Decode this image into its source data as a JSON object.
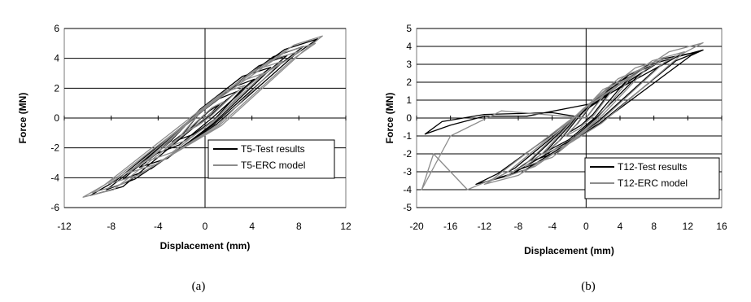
{
  "captions": [
    "(a)",
    "(b)"
  ],
  "chart_data": [
    {
      "type": "line",
      "panel": "(a)",
      "title": "",
      "xlabel": "Displacement (mm)",
      "ylabel": "Force (MN)",
      "xlim": [
        -12,
        12
      ],
      "ylim": [
        -6,
        6
      ],
      "xticks": [
        -12,
        -8,
        -4,
        0,
        4,
        8,
        12
      ],
      "yticks": [
        -6,
        -4,
        -2,
        0,
        2,
        4,
        6
      ],
      "grid": "horizontal",
      "legend_position": "bottom-right",
      "series": [
        {
          "name": "T5-Test results",
          "color": "#000000",
          "x": [
            0,
            0.6,
            1.2,
            0.4,
            -0.6,
            -1.2,
            -0.4,
            0.5,
            1.8,
            2.8,
            1.2,
            -0.5,
            -1.8,
            -2.8,
            -1.0,
            0.8,
            3.0,
            4.2,
            2.2,
            -0.6,
            -3.0,
            -4.2,
            -2.2,
            0.6,
            4.0,
            5.6,
            3.2,
            -0.4,
            -4.0,
            -5.6,
            -3.2,
            0.8,
            5.2,
            7.0,
            4.6,
            0.2,
            -5.2,
            -7.0,
            -4.6,
            0.8,
            6.4,
            8.4,
            5.8,
            0.6,
            -6.4,
            -8.4,
            -6.0,
            1.0,
            7.6,
            9.6,
            6.8,
            0.8,
            -7.6,
            -9.8,
            -7.0,
            0
          ],
          "y": [
            0,
            0.4,
            0.9,
            0.5,
            -0.2,
            -0.7,
            -0.3,
            0.2,
            1.2,
            1.8,
            1.3,
            0.3,
            -1.0,
            -1.6,
            -1.1,
            -0.1,
            1.8,
            2.6,
            2.0,
            0.4,
            -1.6,
            -2.4,
            -1.8,
            0,
            2.4,
            3.4,
            2.8,
            0.6,
            -2.3,
            -3.3,
            -2.7,
            -0.3,
            3.0,
            4.2,
            3.5,
            0.8,
            -2.9,
            -4.1,
            -3.4,
            -0.4,
            3.6,
            4.8,
            4.1,
            1.0,
            -3.6,
            -4.8,
            -4.1,
            -0.4,
            4.2,
            5.3,
            4.6,
            1.2,
            -4.2,
            -5.2,
            -4.6,
            0
          ]
        },
        {
          "name": "T5-ERC model",
          "color": "#8c8c8c",
          "x": [
            0,
            0.8,
            1.6,
            0.6,
            -0.8,
            -1.6,
            -0.6,
            0.6,
            2.2,
            3.4,
            1.6,
            -0.4,
            -2.2,
            -3.4,
            -1.6,
            0.8,
            3.6,
            5.0,
            2.8,
            -0.4,
            -3.6,
            -5.0,
            -2.8,
            1.0,
            4.8,
            6.6,
            4.2,
            0,
            -4.8,
            -6.6,
            -4.2,
            1.2,
            6.0,
            8.2,
            5.6,
            0.4,
            -6.0,
            -8.2,
            -5.6,
            1.2,
            7.4,
            9.4,
            6.8,
            0.8,
            -7.4,
            -9.6,
            -7.0,
            1.4,
            8.4,
            10.0,
            7.6,
            1.0,
            -8.6,
            -10.4,
            -7.8,
            0
          ],
          "y": [
            0,
            0.5,
            1.1,
            0.7,
            -0.3,
            -0.9,
            -0.5,
            0.2,
            1.4,
            2.2,
            1.7,
            0.4,
            -1.3,
            -2.0,
            -1.5,
            -0.2,
            2.1,
            3.0,
            2.4,
            0.5,
            -2.0,
            -2.9,
            -2.3,
            0,
            2.8,
            3.8,
            3.2,
            0.7,
            -2.7,
            -3.7,
            -3.1,
            -0.4,
            3.4,
            4.5,
            3.9,
            1.0,
            -3.3,
            -4.4,
            -3.8,
            -0.5,
            3.9,
            5.0,
            4.4,
            1.1,
            -3.9,
            -5.0,
            -4.4,
            -0.5,
            4.5,
            5.5,
            4.9,
            1.4,
            -4.5,
            -5.3,
            -4.8,
            0
          ]
        }
      ]
    },
    {
      "type": "line",
      "panel": "(b)",
      "title": "",
      "xlabel": "Displacement (mm)",
      "ylabel": "Force (MN)",
      "xlim": [
        -20,
        16
      ],
      "ylim": [
        -5,
        5
      ],
      "xticks": [
        -20,
        -16,
        -12,
        -8,
        -4,
        0,
        4,
        8,
        12,
        16
      ],
      "yticks": [
        -5,
        -4,
        -3,
        -2,
        -1,
        0,
        1,
        2,
        3,
        4,
        5
      ],
      "grid": "horizontal",
      "legend_position": "bottom-right",
      "series": [
        {
          "name": "T12-Test results",
          "color": "#000000",
          "x": [
            0,
            0.8,
            1.6,
            0.4,
            -1.0,
            -2.0,
            -0.6,
            0.8,
            2.6,
            3.8,
            1.6,
            -0.8,
            -3.0,
            -4.4,
            -2.0,
            1.0,
            4.4,
            6.0,
            3.2,
            -0.6,
            -4.6,
            -6.4,
            -3.4,
            1.2,
            6.2,
            8.2,
            5.0,
            -0.4,
            -6.4,
            -8.6,
            -5.2,
            1.4,
            8.4,
            10.6,
            7.0,
            0,
            -8.4,
            -10.8,
            -7.2,
            1.6,
            10.6,
            13.2,
            9.0,
            0.4,
            -10.4,
            -13.0,
            -9.0,
            1.6,
            12.4,
            13.8,
            10.6,
            0.6,
            -7.0,
            -12.0,
            -16.0,
            -19.0,
            -17.0,
            -12.0,
            -4.0,
            0
          ],
          "y": [
            0,
            0.5,
            1.0,
            0.6,
            -0.3,
            -0.8,
            -0.4,
            0.2,
            1.3,
            1.9,
            1.3,
            0.1,
            -1.2,
            -1.8,
            -1.2,
            0,
            1.9,
            2.5,
            1.9,
            0.3,
            -1.8,
            -2.4,
            -1.9,
            0,
            2.4,
            3.0,
            2.4,
            0.4,
            -2.3,
            -3.0,
            -2.4,
            -0.2,
            2.8,
            3.4,
            2.9,
            0.5,
            -2.8,
            -3.4,
            -2.9,
            -0.3,
            3.2,
            3.7,
            3.3,
            0.6,
            -3.1,
            -3.7,
            -3.2,
            -0.3,
            3.5,
            3.8,
            3.4,
            0.8,
            0.1,
            0.1,
            -0.4,
            -0.9,
            -0.2,
            0.2,
            0.3,
            0
          ]
        },
        {
          "name": "T12-ERC model",
          "color": "#8c8c8c",
          "x": [
            0,
            1.0,
            2.0,
            0.6,
            -1.2,
            -2.4,
            -0.8,
            1.0,
            3.0,
            4.4,
            2.0,
            -0.8,
            -3.4,
            -5.0,
            -2.4,
            1.2,
            5.0,
            6.8,
            3.8,
            -0.6,
            -5.2,
            -7.2,
            -4.0,
            1.4,
            7.0,
            9.2,
            5.8,
            -0.4,
            -7.2,
            -9.6,
            -6.0,
            1.6,
            9.2,
            11.6,
            7.8,
            0,
            -9.2,
            -12.0,
            -8.0,
            1.8,
            11.4,
            13.8,
            9.8,
            0.6,
            -11.0,
            -14.0,
            -18.0,
            -19.4,
            -16.0,
            -10.0,
            0
          ],
          "y": [
            0,
            0.6,
            1.2,
            0.8,
            -0.4,
            -1.0,
            -0.6,
            0.2,
            1.5,
            2.1,
            1.6,
            0.2,
            -1.4,
            -2.0,
            -1.5,
            -0.1,
            2.1,
            2.8,
            2.2,
            0.4,
            -2.0,
            -2.7,
            -2.2,
            -0.1,
            2.7,
            3.3,
            2.8,
            0.5,
            -2.6,
            -3.3,
            -2.7,
            -0.2,
            3.1,
            3.7,
            3.2,
            0.6,
            -3.0,
            -3.7,
            -3.2,
            -0.3,
            3.6,
            4.2,
            3.7,
            0.8,
            -3.4,
            -4.0,
            -2.0,
            -4.0,
            -1.0,
            0.4,
            0
          ]
        }
      ]
    }
  ]
}
